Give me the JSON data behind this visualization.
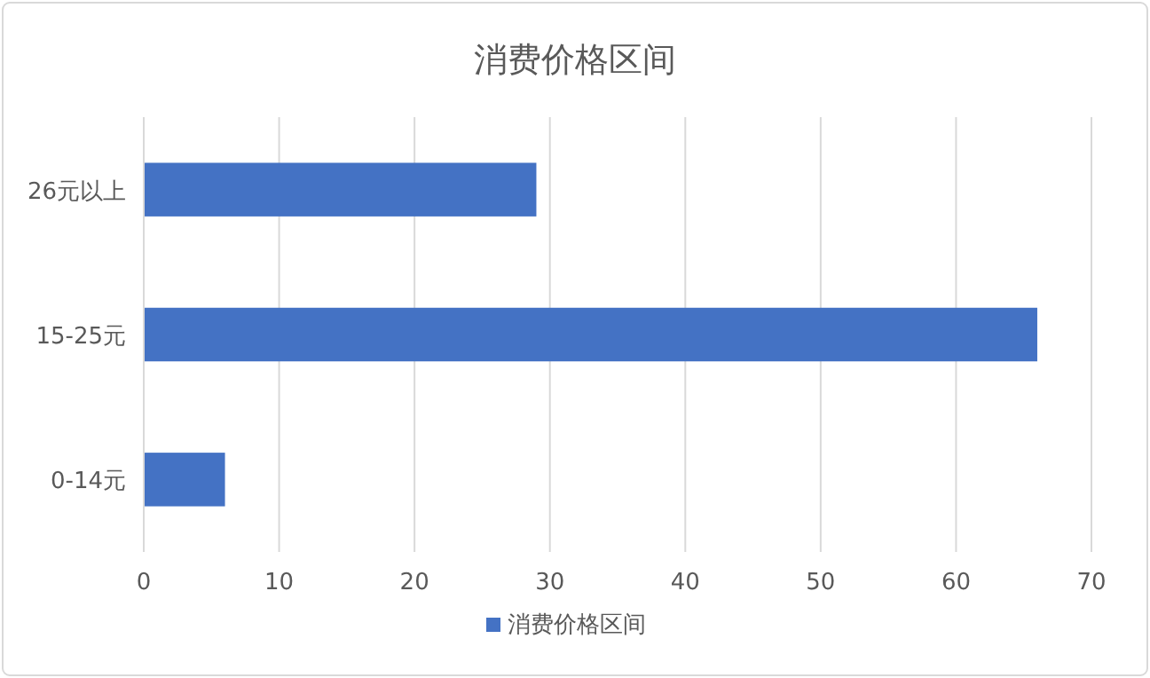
{
  "chart_data": {
    "type": "bar",
    "orientation": "horizontal",
    "title": "消费价格区间",
    "categories": [
      "26元以上",
      "15-25元",
      "0-14元"
    ],
    "series": [
      {
        "name": "消费价格区间",
        "color": "#4472c4",
        "values": [
          29,
          66,
          6
        ]
      }
    ],
    "xlim": [
      0,
      70
    ],
    "xticks": [
      0,
      10,
      20,
      30,
      40,
      50,
      60,
      70
    ],
    "grid": "x",
    "legend": "bottom"
  }
}
